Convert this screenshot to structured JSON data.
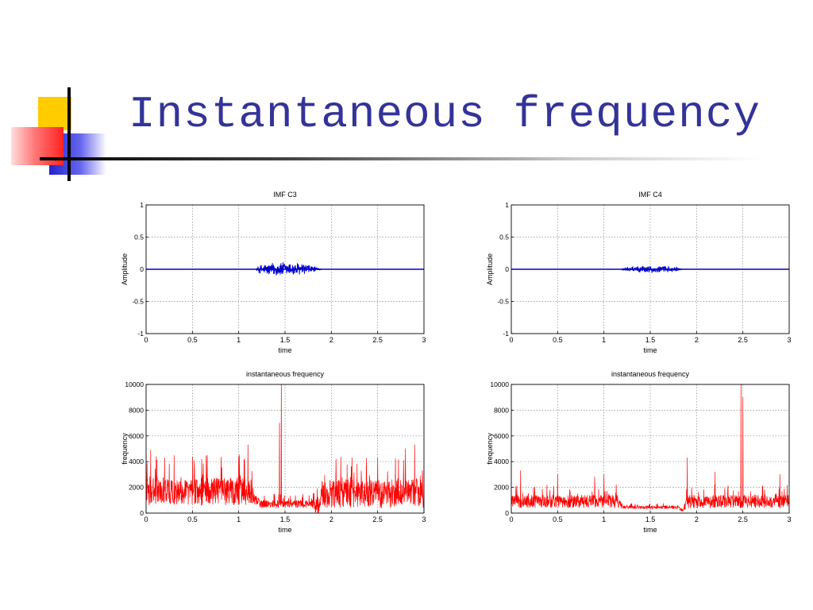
{
  "slide": {
    "title": "Instantaneous frequency"
  },
  "colors": {
    "title": "#333399",
    "amplitude_line": "#0000cc",
    "frequency_line": "#ff0000"
  },
  "chart_data": [
    {
      "id": "c3-amp",
      "type": "line",
      "title": "IMF C3",
      "xlabel": "time",
      "ylabel": "Amplitude",
      "xlim": [
        0,
        3
      ],
      "ylim": [
        -1,
        1
      ],
      "grid": true,
      "xticks": [
        "0",
        "0.5",
        "1",
        "1.5",
        "2",
        "2.5",
        "3"
      ],
      "yticks": [
        "-1",
        "-0.5",
        "0",
        "0.5",
        "1"
      ],
      "series": [
        {
          "kind": "burst",
          "color": "#0000cc",
          "envelope": {
            "x": [
              0,
              1.18,
              1.22,
              1.3,
              1.45,
              1.6,
              1.75,
              1.85,
              1.9,
              3
            ],
            "y": [
              0,
              0,
              0.07,
              0.1,
              0.13,
              0.12,
              0.09,
              0.03,
              0,
              0
            ]
          }
        }
      ]
    },
    {
      "id": "c4-amp",
      "type": "line",
      "title": "IMF C4",
      "xlabel": "time",
      "ylabel": "Amplitude",
      "xlim": [
        0,
        3
      ],
      "ylim": [
        -1,
        1
      ],
      "grid": true,
      "xticks": [
        "0",
        "0.5",
        "1",
        "1.5",
        "2",
        "2.5",
        "3"
      ],
      "yticks": [
        "-1",
        "-0.5",
        "0",
        "0.5",
        "1"
      ],
      "series": [
        {
          "kind": "burst",
          "color": "#0000cc",
          "envelope": {
            "x": [
              0,
              1.18,
              1.22,
              1.35,
              1.5,
              1.65,
              1.78,
              1.85,
              3
            ],
            "y": [
              0,
              0,
              0.03,
              0.05,
              0.07,
              0.06,
              0.04,
              0,
              0
            ]
          }
        }
      ]
    },
    {
      "id": "c3-freq",
      "type": "line",
      "title": "instantaneous frequency",
      "xlabel": "time",
      "ylabel": "frequency",
      "xlim": [
        0,
        3
      ],
      "ylim": [
        0,
        10000
      ],
      "grid": true,
      "xticks": [
        "0",
        "0.5",
        "1",
        "1.5",
        "2",
        "2.5",
        "3"
      ],
      "yticks": [
        "0",
        "2000",
        "4000",
        "6000",
        "8000",
        "10000"
      ],
      "series": [
        {
          "kind": "noise",
          "color": "#ff0000",
          "baseline": {
            "x": [
              0,
              1.1,
              1.18,
              1.25,
              1.8,
              1.85,
              1.9,
              3
            ],
            "y": [
              1700,
              1700,
              1000,
              700,
              700,
              500,
              1500,
              1500
            ]
          },
          "spread": {
            "x": [
              0,
              1.1,
              1.2,
              1.8,
              1.9,
              3
            ],
            "y": [
              1100,
              1100,
              300,
              300,
              1100,
              1100
            ]
          },
          "spikes": [
            [
              1.46,
              10000
            ],
            [
              1.44,
              7000
            ],
            [
              0.05,
              4900
            ],
            [
              0.2,
              4300
            ],
            [
              0.6,
              4200
            ],
            [
              1.0,
              4400
            ],
            [
              1.1,
              5300
            ],
            [
              2.05,
              4200
            ],
            [
              2.5,
              4300
            ],
            [
              2.8,
              5000
            ],
            [
              2.9,
              5300
            ]
          ]
        }
      ]
    },
    {
      "id": "c4-freq",
      "type": "line",
      "title": "instantaneous frequency",
      "xlabel": "time",
      "ylabel": "frequency",
      "xlim": [
        0,
        3
      ],
      "ylim": [
        0,
        10000
      ],
      "grid": true,
      "xticks": [
        "0",
        "0.5",
        "1",
        "1.5",
        "2",
        "2.5",
        "3"
      ],
      "yticks": [
        "0",
        "2000",
        "4000",
        "6000",
        "8000",
        "10000"
      ],
      "series": [
        {
          "kind": "noise",
          "color": "#ff0000",
          "baseline": {
            "x": [
              0,
              1.15,
              1.2,
              1.8,
              1.85,
              1.9,
              3
            ],
            "y": [
              900,
              900,
              450,
              450,
              200,
              900,
              900
            ]
          },
          "spread": {
            "x": [
              0,
              1.15,
              1.2,
              1.85,
              1.9,
              3
            ],
            "y": [
              500,
              500,
              120,
              120,
              500,
              500
            ]
          },
          "spikes": [
            [
              2.48,
              10000
            ],
            [
              2.5,
              9000
            ],
            [
              1.9,
              4300
            ],
            [
              0.1,
              3300
            ],
            [
              0.5,
              3000
            ],
            [
              0.9,
              2800
            ],
            [
              1.0,
              3000
            ],
            [
              2.2,
              3200
            ],
            [
              2.9,
              3000
            ]
          ]
        }
      ]
    }
  ]
}
